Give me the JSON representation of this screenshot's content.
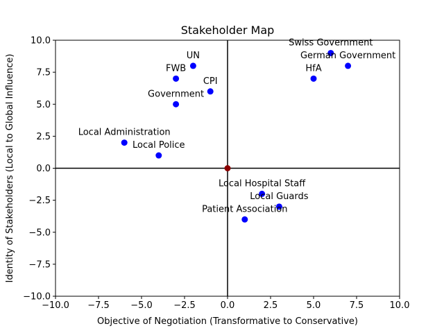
{
  "chart_data": {
    "type": "scatter",
    "title": "Stakeholder Map",
    "xlabel": "Objective of Negotiation (Transformative to Conservative)",
    "ylabel": "Identity of Stakeholders (Local to Global Influence)",
    "xlim": [
      -10,
      10
    ],
    "ylim": [
      -10,
      10
    ],
    "xticks": [
      -10,
      -7.5,
      -5,
      -2.5,
      0,
      2.5,
      5,
      7.5,
      10
    ],
    "yticks": [
      -10,
      -7.5,
      -5,
      -2.5,
      0,
      2.5,
      5,
      7.5,
      10
    ],
    "xtick_labels": [
      "−10.0",
      "−7.5",
      "−5.0",
      "−2.5",
      "0.0",
      "2.5",
      "5.0",
      "7.5",
      "10.0"
    ],
    "ytick_labels": [
      "−10.0",
      "−7.5",
      "−5.0",
      "−2.5",
      "0.0",
      "2.5",
      "5.0",
      "7.5",
      "10.0"
    ],
    "grid": false,
    "reference_lines": {
      "x": 0,
      "y": 0
    },
    "origin_marker": {
      "x": 0,
      "y": 0,
      "color": "#8b0000"
    },
    "point_color": "#0000ff",
    "points": [
      {
        "label": "UN",
        "x": -2,
        "y": 8
      },
      {
        "label": "FWB",
        "x": -3,
        "y": 7
      },
      {
        "label": "CPI",
        "x": -1,
        "y": 6
      },
      {
        "label": "Government",
        "x": -3,
        "y": 5
      },
      {
        "label": "Local Administration",
        "x": -6,
        "y": 2
      },
      {
        "label": "Local Police",
        "x": -4,
        "y": 1
      },
      {
        "label": "Swiss Government",
        "x": 6,
        "y": 9
      },
      {
        "label": "German Government",
        "x": 7,
        "y": 8
      },
      {
        "label": "HfA",
        "x": 5,
        "y": 7
      },
      {
        "label": "Local Hospital Staff",
        "x": 2,
        "y": -2
      },
      {
        "label": "Local Guards",
        "x": 3,
        "y": -3
      },
      {
        "label": "Patient Association",
        "x": 1,
        "y": -4
      }
    ]
  }
}
